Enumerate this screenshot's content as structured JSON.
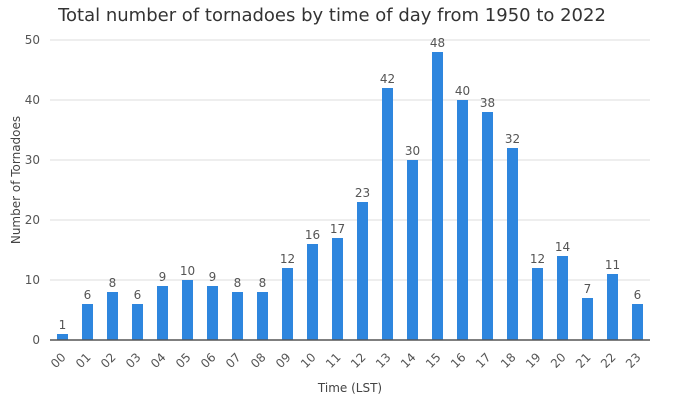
{
  "chart_data": {
    "type": "bar",
    "title": "Total number of tornadoes by time of day from 1950 to 2022",
    "xlabel": "Time (LST)",
    "ylabel": "Number of Tornadoes",
    "ylim": [
      0,
      50
    ],
    "yticks": [
      0,
      10,
      20,
      30,
      40,
      50
    ],
    "grid": true,
    "categories": [
      "00",
      "01",
      "02",
      "03",
      "04",
      "05",
      "06",
      "07",
      "08",
      "09",
      "10",
      "11",
      "12",
      "13",
      "14",
      "15",
      "16",
      "17",
      "18",
      "19",
      "20",
      "21",
      "22",
      "23"
    ],
    "values": [
      1,
      6,
      8,
      6,
      9,
      10,
      9,
      8,
      8,
      12,
      16,
      17,
      23,
      42,
      30,
      48,
      40,
      38,
      32,
      12,
      14,
      7,
      11,
      6
    ],
    "bar_color": "#2e86de"
  }
}
